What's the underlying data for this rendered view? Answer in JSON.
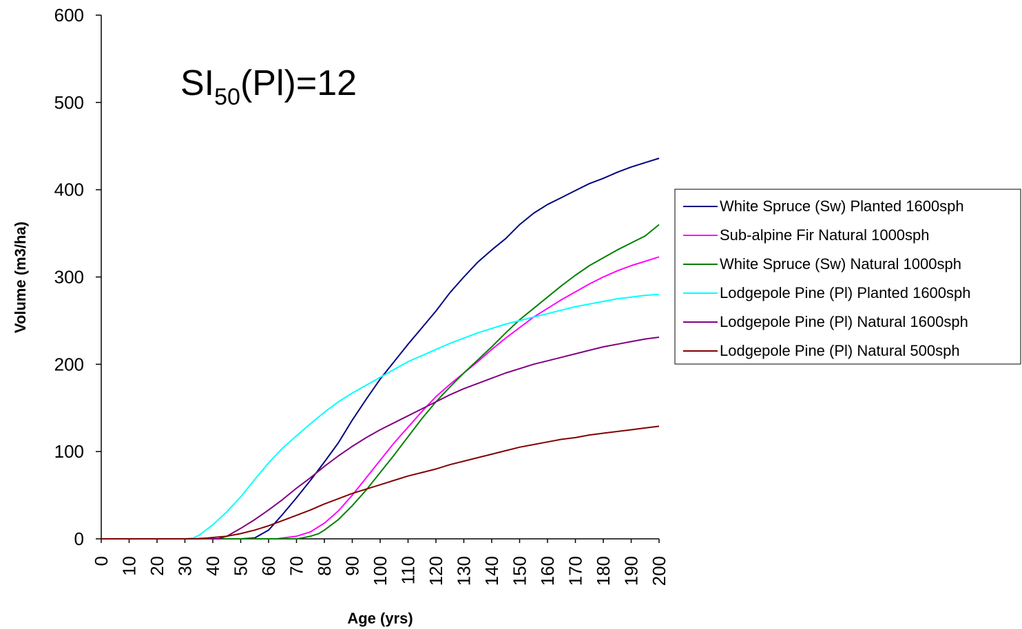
{
  "chart_data": {
    "type": "line",
    "annotation": {
      "main": "SI",
      "sub": "50",
      "rest": "(Pl)=12"
    },
    "xlabel": "Age (yrs)",
    "ylabel": "Volume (m3/ha)",
    "xlim": [
      0,
      200
    ],
    "ylim": [
      0,
      600
    ],
    "xticks": [
      "0",
      "10",
      "20",
      "30",
      "40",
      "50",
      "60",
      "70",
      "80",
      "90",
      "100",
      "110",
      "120",
      "130",
      "140",
      "150",
      "160",
      "170",
      "180",
      "190",
      "200"
    ],
    "yticks": [
      "0",
      "100",
      "200",
      "300",
      "400",
      "500",
      "600"
    ],
    "grid": false,
    "legend_position": "right",
    "series": [
      {
        "name": "White Spruce (Sw) Planted 1600sph",
        "color": "#000080",
        "points": [
          [
            0,
            0
          ],
          [
            50,
            0
          ],
          [
            55,
            1
          ],
          [
            60,
            10
          ],
          [
            65,
            28
          ],
          [
            70,
            47
          ],
          [
            75,
            67
          ],
          [
            80,
            88
          ],
          [
            85,
            110
          ],
          [
            90,
            136
          ],
          [
            95,
            160
          ],
          [
            100,
            183
          ],
          [
            105,
            203
          ],
          [
            110,
            223
          ],
          [
            115,
            242
          ],
          [
            120,
            261
          ],
          [
            125,
            282
          ],
          [
            130,
            300
          ],
          [
            135,
            317
          ],
          [
            140,
            331
          ],
          [
            145,
            344
          ],
          [
            150,
            360
          ],
          [
            155,
            373
          ],
          [
            160,
            383
          ],
          [
            165,
            391
          ],
          [
            170,
            399
          ],
          [
            175,
            407
          ],
          [
            180,
            413
          ],
          [
            185,
            420
          ],
          [
            190,
            426
          ],
          [
            195,
            431
          ],
          [
            200,
            436
          ]
        ]
      },
      {
        "name": "Sub-alpine Fir  Natural 1000sph",
        "color": "#ff00ff",
        "points": [
          [
            0,
            0
          ],
          [
            63,
            0
          ],
          [
            65,
            1
          ],
          [
            70,
            3
          ],
          [
            75,
            8
          ],
          [
            80,
            18
          ],
          [
            85,
            32
          ],
          [
            90,
            50
          ],
          [
            95,
            70
          ],
          [
            100,
            90
          ],
          [
            105,
            110
          ],
          [
            110,
            128
          ],
          [
            115,
            146
          ],
          [
            120,
            163
          ],
          [
            125,
            177
          ],
          [
            130,
            190
          ],
          [
            135,
            203
          ],
          [
            140,
            217
          ],
          [
            145,
            230
          ],
          [
            150,
            242
          ],
          [
            155,
            254
          ],
          [
            160,
            264
          ],
          [
            165,
            274
          ],
          [
            170,
            283
          ],
          [
            175,
            292
          ],
          [
            180,
            300
          ],
          [
            185,
            307
          ],
          [
            190,
            313
          ],
          [
            195,
            318
          ],
          [
            200,
            323
          ]
        ]
      },
      {
        "name": "White Spruce (Sw) Natural 1000sph",
        "color": "#008000",
        "points": [
          [
            0,
            0
          ],
          [
            70,
            0
          ],
          [
            72,
            1
          ],
          [
            75,
            3
          ],
          [
            78,
            6
          ],
          [
            80,
            10
          ],
          [
            85,
            22
          ],
          [
            90,
            38
          ],
          [
            95,
            56
          ],
          [
            100,
            76
          ],
          [
            105,
            96
          ],
          [
            110,
            117
          ],
          [
            115,
            138
          ],
          [
            120,
            157
          ],
          [
            125,
            174
          ],
          [
            130,
            190
          ],
          [
            135,
            205
          ],
          [
            140,
            220
          ],
          [
            145,
            236
          ],
          [
            150,
            251
          ],
          [
            155,
            264
          ],
          [
            160,
            277
          ],
          [
            165,
            290
          ],
          [
            170,
            302
          ],
          [
            175,
            313
          ],
          [
            180,
            322
          ],
          [
            185,
            331
          ],
          [
            190,
            339
          ],
          [
            195,
            347
          ],
          [
            200,
            360
          ]
        ]
      },
      {
        "name": "Lodgepole Pine  (Pl) Planted 1600sph",
        "color": "#00ffff",
        "points": [
          [
            0,
            0
          ],
          [
            30,
            0
          ],
          [
            33,
            1
          ],
          [
            35,
            4
          ],
          [
            40,
            16
          ],
          [
            45,
            31
          ],
          [
            50,
            48
          ],
          [
            55,
            68
          ],
          [
            60,
            87
          ],
          [
            65,
            104
          ],
          [
            70,
            118
          ],
          [
            75,
            132
          ],
          [
            80,
            145
          ],
          [
            85,
            157
          ],
          [
            90,
            167
          ],
          [
            95,
            176
          ],
          [
            100,
            185
          ],
          [
            105,
            194
          ],
          [
            110,
            203
          ],
          [
            115,
            210
          ],
          [
            120,
            217
          ],
          [
            125,
            224
          ],
          [
            130,
            230
          ],
          [
            135,
            236
          ],
          [
            140,
            241
          ],
          [
            145,
            246
          ],
          [
            150,
            250
          ],
          [
            155,
            254
          ],
          [
            160,
            258
          ],
          [
            165,
            262
          ],
          [
            170,
            266
          ],
          [
            175,
            269
          ],
          [
            180,
            272
          ],
          [
            185,
            275
          ],
          [
            190,
            277
          ],
          [
            195,
            279
          ],
          [
            200,
            280
          ]
        ]
      },
      {
        "name": "Lodgepole Pine  (Pl) Natural 1600sph",
        "color": "#800080",
        "points": [
          [
            0,
            0
          ],
          [
            42,
            0
          ],
          [
            45,
            3
          ],
          [
            50,
            12
          ],
          [
            55,
            22
          ],
          [
            60,
            33
          ],
          [
            65,
            45
          ],
          [
            70,
            58
          ],
          [
            75,
            70
          ],
          [
            80,
            83
          ],
          [
            85,
            95
          ],
          [
            90,
            106
          ],
          [
            95,
            116
          ],
          [
            100,
            125
          ],
          [
            105,
            133
          ],
          [
            110,
            141
          ],
          [
            115,
            149
          ],
          [
            120,
            157
          ],
          [
            125,
            165
          ],
          [
            130,
            172
          ],
          [
            135,
            178
          ],
          [
            140,
            184
          ],
          [
            145,
            190
          ],
          [
            150,
            195
          ],
          [
            155,
            200
          ],
          [
            160,
            204
          ],
          [
            165,
            208
          ],
          [
            170,
            212
          ],
          [
            175,
            216
          ],
          [
            180,
            220
          ],
          [
            185,
            223
          ],
          [
            190,
            226
          ],
          [
            195,
            229
          ],
          [
            200,
            231
          ]
        ]
      },
      {
        "name": "Lodgepole Pine  (Pl) Natural 500sph",
        "color": "#800000",
        "points": [
          [
            0,
            0
          ],
          [
            33,
            0
          ],
          [
            38,
            1
          ],
          [
            45,
            3
          ],
          [
            50,
            6
          ],
          [
            55,
            10
          ],
          [
            60,
            15
          ],
          [
            65,
            21
          ],
          [
            70,
            27
          ],
          [
            75,
            33
          ],
          [
            80,
            40
          ],
          [
            85,
            46
          ],
          [
            90,
            52
          ],
          [
            95,
            57
          ],
          [
            100,
            62
          ],
          [
            105,
            67
          ],
          [
            110,
            72
          ],
          [
            115,
            76
          ],
          [
            120,
            80
          ],
          [
            125,
            85
          ],
          [
            130,
            89
          ],
          [
            135,
            93
          ],
          [
            140,
            97
          ],
          [
            145,
            101
          ],
          [
            150,
            105
          ],
          [
            155,
            108
          ],
          [
            160,
            111
          ],
          [
            165,
            114
          ],
          [
            170,
            116
          ],
          [
            175,
            119
          ],
          [
            180,
            121
          ],
          [
            185,
            123
          ],
          [
            190,
            125
          ],
          [
            195,
            127
          ],
          [
            200,
            129
          ]
        ]
      }
    ]
  }
}
